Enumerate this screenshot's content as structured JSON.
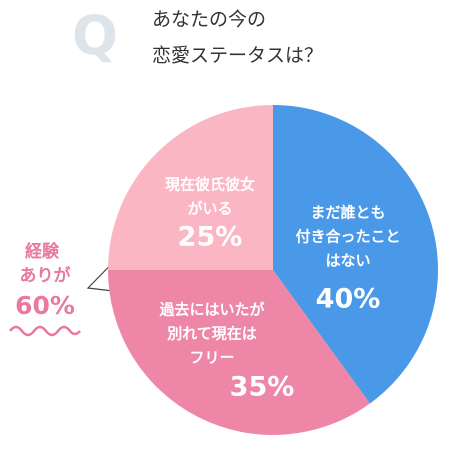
{
  "chart_data": {
    "type": "pie",
    "title_lines": [
      "あなたの今の",
      "恋愛ステータスは？"
    ],
    "badge": "Q",
    "categories": [
      [
        "まだ誰とも",
        "付き合ったこと",
        "はない"
      ],
      [
        "過去にはいたが",
        "別れて現在は",
        "フリー"
      ],
      [
        "現在彼氏彼女",
        "がいる"
      ]
    ],
    "values": [
      40,
      35,
      25
    ],
    "value_labels": [
      "40%",
      "35%",
      "25%"
    ],
    "colors": [
      "#4a98e8",
      "#ee87a7",
      "#fbb6c4"
    ],
    "annotation_lines": [
      "経験",
      "ありが",
      "60%"
    ]
  }
}
